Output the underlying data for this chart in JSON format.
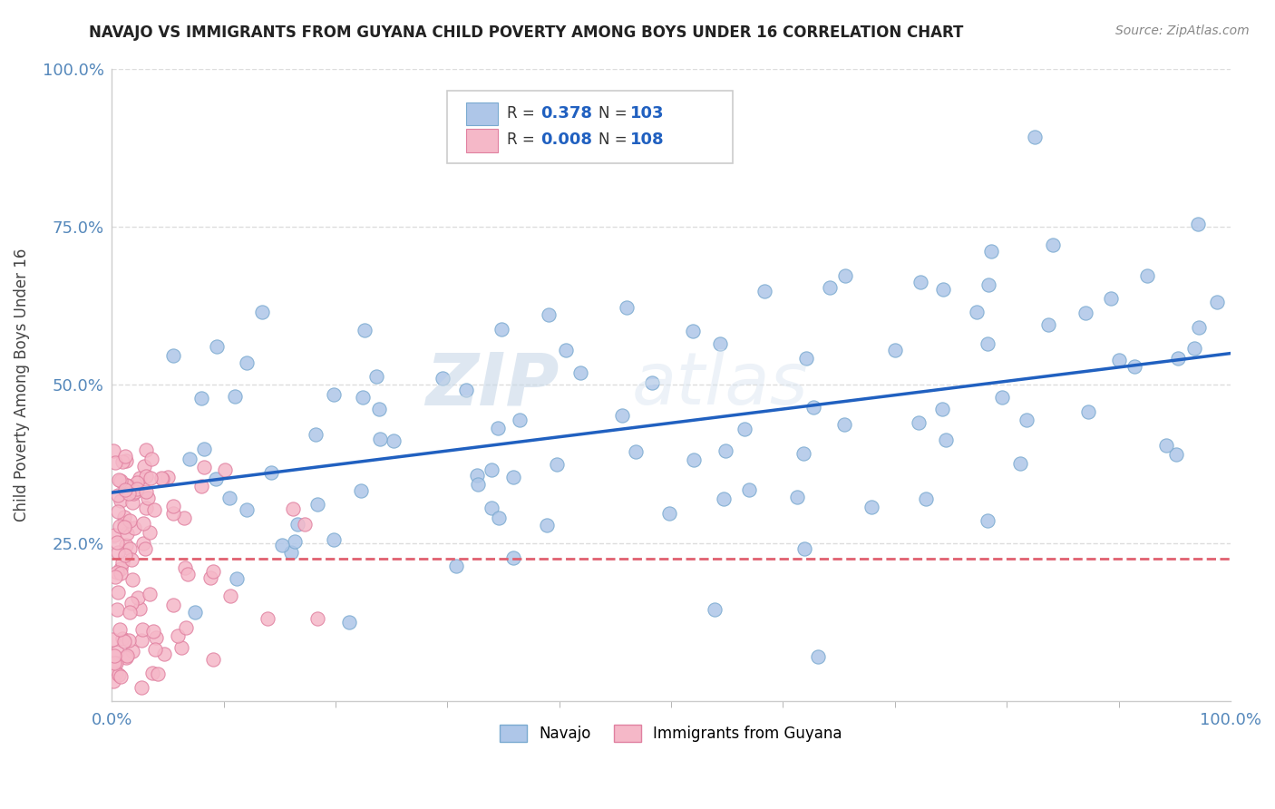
{
  "title": "NAVAJO VS IMMIGRANTS FROM GUYANA CHILD POVERTY AMONG BOYS UNDER 16 CORRELATION CHART",
  "source": "Source: ZipAtlas.com",
  "ylabel": "Child Poverty Among Boys Under 16",
  "xlim": [
    0.0,
    1.0
  ],
  "ylim": [
    0.0,
    1.0
  ],
  "navajo_R": 0.378,
  "navajo_N": 103,
  "guyana_R": 0.008,
  "guyana_N": 108,
  "navajo_color": "#aec6e8",
  "guyana_color": "#f5b8c8",
  "navajo_edge_color": "#7aaad0",
  "guyana_edge_color": "#e080a0",
  "navajo_line_color": "#2060c0",
  "guyana_line_color": "#e06070",
  "background_color": "#ffffff",
  "navajo_line_y0": 0.33,
  "navajo_line_y1": 0.55,
  "guyana_line_y": 0.225,
  "tick_color": "#5588bb",
  "grid_color": "#dddddd",
  "title_color": "#222222",
  "source_color": "#888888",
  "ylabel_color": "#444444"
}
